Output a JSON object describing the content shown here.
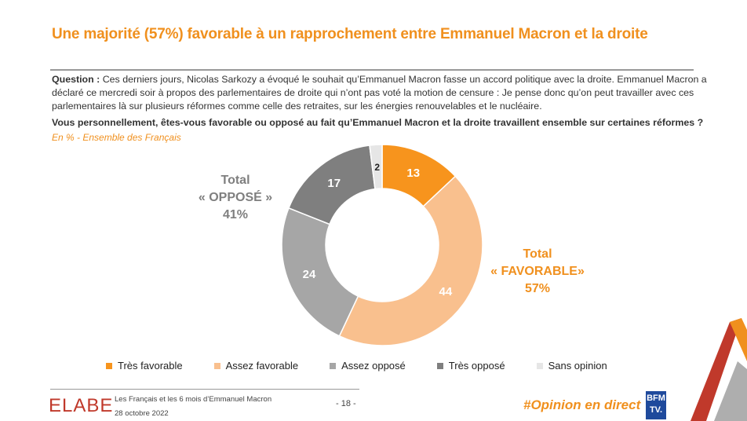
{
  "title": "Une majorité (57%) favorable à un rapprochement entre Emmanuel Macron et la droite",
  "question_label": "Question :",
  "question_text": "Ces derniers jours, Nicolas Sarkozy a évoqué le souhait qu’Emmanuel Macron fasse un accord politique avec la droite. Emmanuel Macron a déclaré ce mercredi soir à propos des parlementaires de droite qui n’ont pas voté la motion de censure : Je pense donc qu’on peut travailler avec ces parlementaires là sur plusieurs réformes comme celle des retraites, sur les énergies renouvelables et le nucléaire.",
  "ask": "Vous personnellement, êtes-vous favorable ou opposé au fait qu’Emmanuel Macron et la droite travaillent ensemble sur certaines réformes ?",
  "scope": "En % - Ensemble des Français",
  "totals": {
    "opposed": {
      "l1": "Total",
      "l2": "« OPPOSÉ »",
      "l3": "41%"
    },
    "favorable": {
      "l1": "Total",
      "l2": "« FAVORABLE»",
      "l3": "57%"
    }
  },
  "chart_data": {
    "type": "pie",
    "donut": true,
    "categories": [
      "Très favorable",
      "Assez favorable",
      "Assez opposé",
      "Très opposé",
      "Sans opinion"
    ],
    "values": [
      13,
      44,
      24,
      17,
      2
    ],
    "colors": [
      "#f7941d",
      "#f9c08e",
      "#a6a6a6",
      "#7f7f7f",
      "#e6e6e6"
    ],
    "label_colors": [
      "#ffffff",
      "#ffffff",
      "#ffffff",
      "#ffffff",
      "#222222"
    ],
    "legend_position": "bottom"
  },
  "footer": {
    "brand": "ELABE",
    "study": "Les Français et les 6 mois d’Emmanuel Macron",
    "date": "28 octobre 2022",
    "page": "- 18 -",
    "hashtag": "#Opinion en direct",
    "bfm_logo": "BFM TV."
  }
}
